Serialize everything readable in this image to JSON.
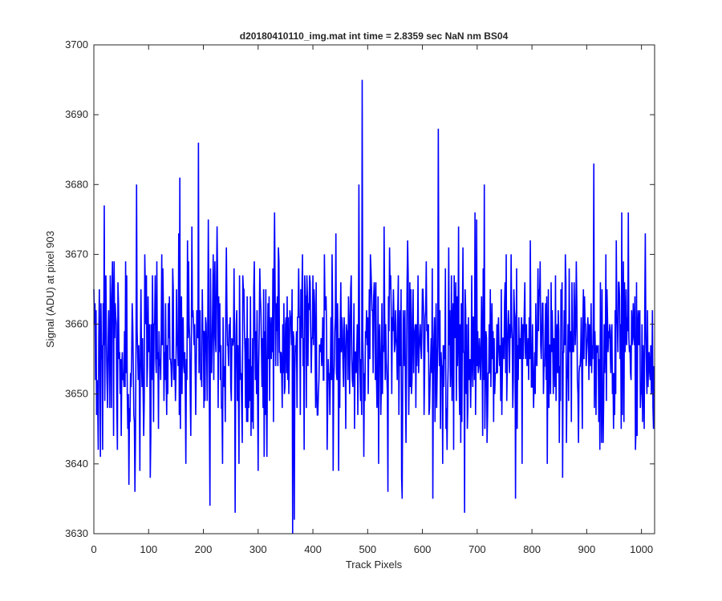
{
  "chart_data": {
    "type": "line",
    "title": "d20180410110_img.mat int time = 2.8359 sec  NaN nm BS04",
    "xlabel": "Track Pixels",
    "ylabel": "Signal (ADU) at pixel 903",
    "xlim": [
      0,
      1024
    ],
    "ylim": [
      3630,
      3700
    ],
    "xticks": [
      0,
      100,
      200,
      300,
      400,
      500,
      600,
      700,
      800,
      900,
      1000
    ],
    "yticks": [
      3630,
      3640,
      3650,
      3660,
      3670,
      3680,
      3690,
      3700
    ],
    "grid": false,
    "legend": "none",
    "n_points": 1024,
    "mean": 3657,
    "noise_std": 7,
    "series": [
      {
        "color": "#0000ff",
        "notable_points": [
          {
            "x": 12,
            "y": 3641
          },
          {
            "x": 19,
            "y": 3677
          },
          {
            "x": 64,
            "y": 3637
          },
          {
            "x": 75,
            "y": 3636
          },
          {
            "x": 78,
            "y": 3680
          },
          {
            "x": 157,
            "y": 3681
          },
          {
            "x": 191,
            "y": 3686
          },
          {
            "x": 212,
            "y": 3634
          },
          {
            "x": 258,
            "y": 3633
          },
          {
            "x": 363,
            "y": 3630
          },
          {
            "x": 366,
            "y": 3632
          },
          {
            "x": 484,
            "y": 3680
          },
          {
            "x": 490,
            "y": 3695
          },
          {
            "x": 537,
            "y": 3636
          },
          {
            "x": 563,
            "y": 3635
          },
          {
            "x": 619,
            "y": 3635
          },
          {
            "x": 629,
            "y": 3688
          },
          {
            "x": 677,
            "y": 3633
          },
          {
            "x": 713,
            "y": 3680
          },
          {
            "x": 770,
            "y": 3635
          },
          {
            "x": 913,
            "y": 3683
          },
          {
            "x": 1022,
            "y": 3645
          }
        ]
      }
    ]
  }
}
